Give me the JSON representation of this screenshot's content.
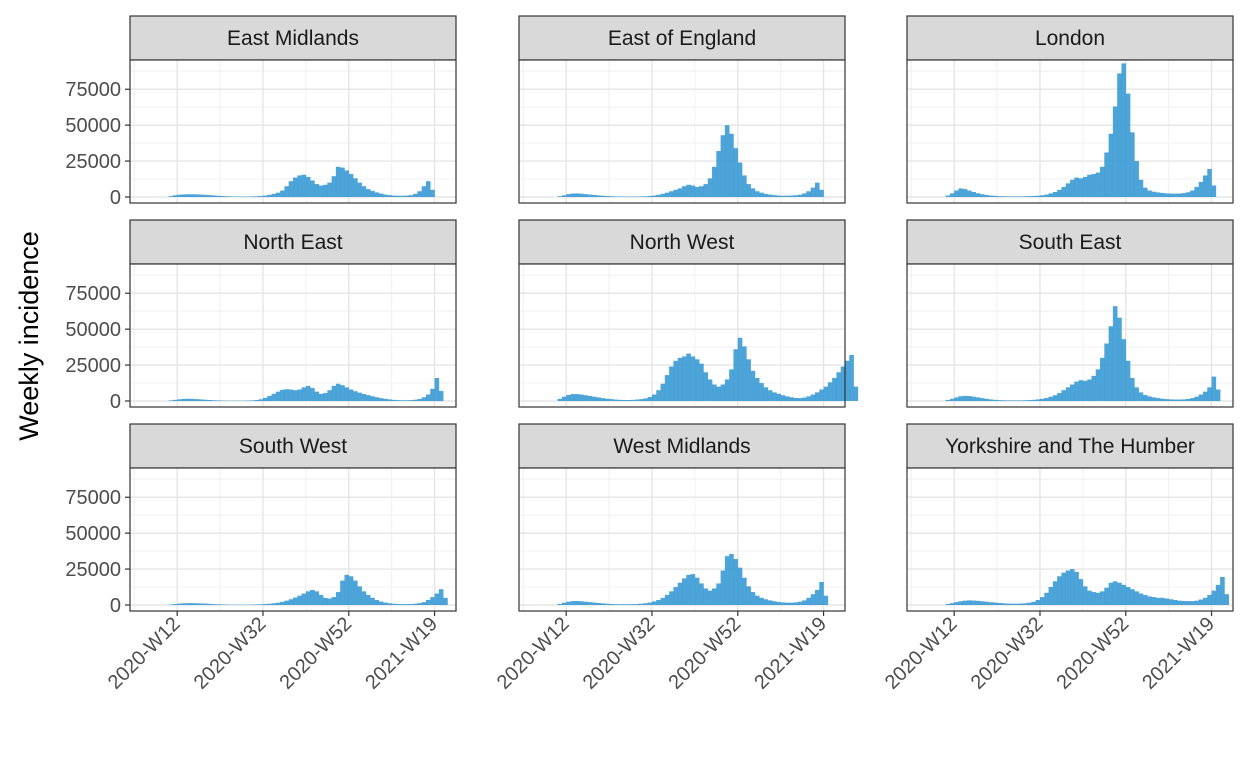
{
  "figure": {
    "ylabel": "Weekly incidence"
  },
  "chart_data": {
    "type": "bar",
    "x_ticks": [
      "2020-W12",
      "2020-W32",
      "2020-W52",
      "2021-W19"
    ],
    "x_start_week": "2020-W01",
    "y_ticks": [
      0,
      25000,
      50000,
      75000
    ],
    "ylim": [
      0,
      95000
    ],
    "bar_color": "#3a9ad4",
    "strip_fill": "#d9d9d9",
    "grid": true,
    "panels": [
      {
        "name": "East Midlands",
        "start_week": "2020-W10",
        "values": [
          600,
          1200,
          1600,
          1800,
          1900,
          1900,
          1800,
          1700,
          1500,
          1300,
          1100,
          900,
          700,
          500,
          400,
          300,
          300,
          300,
          300,
          400,
          500,
          700,
          1000,
          1500,
          2200,
          3000,
          4500,
          7500,
          11000,
          13500,
          15000,
          15500,
          14000,
          11500,
          9000,
          8000,
          8500,
          10000,
          14500,
          21000,
          20500,
          18500,
          16000,
          13000,
          10000,
          7500,
          5500,
          4200,
          3200,
          2400,
          1700,
          1300,
          1000,
          900,
          900,
          1000,
          1300,
          2200,
          4000,
          7500,
          11000,
          5000
        ]
      },
      {
        "name": "East of England",
        "start_week": "2020-W10",
        "values": [
          500,
          1200,
          2000,
          2400,
          2500,
          2300,
          2000,
          1700,
          1400,
          1100,
          900,
          700,
          500,
          400,
          300,
          300,
          300,
          300,
          300,
          400,
          500,
          700,
          1000,
          1500,
          2200,
          3000,
          4000,
          5000,
          6000,
          7500,
          8500,
          8000,
          7000,
          7500,
          9000,
          13000,
          21000,
          32000,
          43000,
          50000,
          44000,
          34000,
          24000,
          15000,
          9000,
          6000,
          4000,
          3000,
          2200,
          1700,
          1300,
          1000,
          900,
          900,
          1000,
          1200,
          1600,
          2500,
          4000,
          6500,
          10000,
          5000
        ]
      },
      {
        "name": "London",
        "start_week": "2020-W10",
        "values": [
          1000,
          2500,
          4500,
          6000,
          5500,
          4500,
          3500,
          2600,
          1900,
          1400,
          1000,
          800,
          600,
          500,
          400,
          400,
          400,
          400,
          500,
          600,
          700,
          900,
          1200,
          1700,
          2500,
          3500,
          5000,
          7000,
          9500,
          12000,
          13500,
          13000,
          14000,
          15500,
          16000,
          17000,
          21000,
          31000,
          44000,
          63000,
          86000,
          93000,
          72000,
          45000,
          25000,
          12000,
          6500,
          4500,
          3700,
          3200,
          2800,
          2500,
          2400,
          2300,
          2400,
          2700,
          3300,
          4500,
          7000,
          10500,
          15000,
          19500,
          8000
        ]
      },
      {
        "name": "North East",
        "start_week": "2020-W10",
        "values": [
          400,
          800,
          1200,
          1500,
          1600,
          1500,
          1300,
          1100,
          900,
          700,
          500,
          400,
          300,
          200,
          200,
          200,
          200,
          200,
          300,
          400,
          700,
          1200,
          2200,
          3500,
          5000,
          6500,
          7800,
          8200,
          8000,
          7500,
          8000,
          9500,
          10500,
          9000,
          6500,
          5000,
          5500,
          7500,
          10500,
          12000,
          11000,
          9500,
          8000,
          6800,
          5800,
          4900,
          4100,
          3300,
          2600,
          2000,
          1500,
          1100,
          800,
          600,
          500,
          500,
          600,
          900,
          1400,
          2600,
          4500,
          8500,
          16000,
          7000
        ]
      },
      {
        "name": "North West",
        "start_week": "2020-W10",
        "values": [
          1500,
          3000,
          4200,
          4800,
          4800,
          4500,
          4000,
          3500,
          3000,
          2500,
          2000,
          1600,
          1300,
          1000,
          800,
          700,
          700,
          800,
          1000,
          1300,
          1800,
          2800,
          4500,
          7500,
          12000,
          18000,
          24000,
          28000,
          30000,
          31000,
          33000,
          31000,
          29000,
          26000,
          20000,
          15000,
          11500,
          10000,
          11500,
          15000,
          22000,
          36000,
          44000,
          38000,
          29000,
          21000,
          16000,
          12500,
          9500,
          7500,
          6000,
          5000,
          4000,
          3200,
          2600,
          2100,
          2000,
          2400,
          3200,
          4500,
          6000,
          8000,
          10000,
          13000,
          16000,
          20000,
          24000,
          28000,
          32000,
          10000
        ]
      },
      {
        "name": "South East",
        "start_week": "2020-W10",
        "values": [
          700,
          1500,
          2500,
          3300,
          3600,
          3400,
          3000,
          2500,
          2000,
          1500,
          1100,
          800,
          600,
          500,
          400,
          400,
          400,
          400,
          500,
          600,
          800,
          1100,
          1500,
          2100,
          3000,
          4000,
          5500,
          7500,
          9500,
          11500,
          13500,
          14500,
          14000,
          15000,
          17500,
          22000,
          30000,
          40000,
          52000,
          66000,
          58000,
          43000,
          28000,
          16000,
          9500,
          6000,
          4200,
          3200,
          2500,
          2000,
          1600,
          1300,
          1100,
          1000,
          1000,
          1100,
          1400,
          2000,
          3000,
          4500,
          6500,
          9500,
          17000,
          8000
        ]
      },
      {
        "name": "South West",
        "start_week": "2020-W10",
        "values": [
          300,
          700,
          1000,
          1200,
          1300,
          1300,
          1200,
          1100,
          1000,
          800,
          600,
          500,
          400,
          300,
          200,
          200,
          200,
          200,
          200,
          300,
          400,
          500,
          700,
          900,
          1200,
          1600,
          2200,
          3000,
          4000,
          5200,
          6500,
          8000,
          9500,
          10500,
          9500,
          7000,
          5000,
          4500,
          5500,
          9000,
          17000,
          21000,
          20000,
          17000,
          13000,
          9500,
          7000,
          5000,
          3500,
          2400,
          1700,
          1200,
          900,
          700,
          600,
          600,
          700,
          900,
          1300,
          2000,
          3500,
          5500,
          8000,
          11000,
          5000
        ]
      },
      {
        "name": "West Midlands",
        "start_week": "2020-W10",
        "values": [
          800,
          1600,
          2300,
          2700,
          2800,
          2600,
          2300,
          2000,
          1700,
          1400,
          1100,
          900,
          700,
          600,
          500,
          500,
          500,
          600,
          700,
          900,
          1200,
          1700,
          2500,
          3500,
          5000,
          7000,
          9500,
          12500,
          15500,
          18500,
          21000,
          21500,
          19000,
          15000,
          11500,
          10000,
          11500,
          15000,
          24000,
          34000,
          35500,
          32000,
          26000,
          19000,
          13000,
          9000,
          6500,
          5000,
          4000,
          3200,
          2600,
          2100,
          1800,
          1600,
          1600,
          1800,
          2300,
          3200,
          5000,
          7500,
          10500,
          16000,
          6500
        ]
      },
      {
        "name": "Yorkshire and The Humber",
        "start_week": "2020-W10",
        "values": [
          700,
          1300,
          2000,
          2600,
          3000,
          3200,
          3100,
          2900,
          2600,
          2300,
          2000,
          1700,
          1400,
          1200,
          1000,
          900,
          900,
          1000,
          1200,
          1600,
          2200,
          3500,
          5500,
          8500,
          12500,
          16500,
          20000,
          22500,
          24000,
          25000,
          23000,
          18000,
          13000,
          10000,
          9000,
          8500,
          9500,
          12000,
          15500,
          16500,
          15500,
          14000,
          12500,
          11000,
          9500,
          8000,
          7000,
          6000,
          5500,
          5000,
          5000,
          4500,
          4000,
          3500,
          3000,
          2800,
          2700,
          2700,
          3000,
          3800,
          5000,
          7000,
          10000,
          14000,
          19500,
          7500
        ]
      }
    ]
  }
}
